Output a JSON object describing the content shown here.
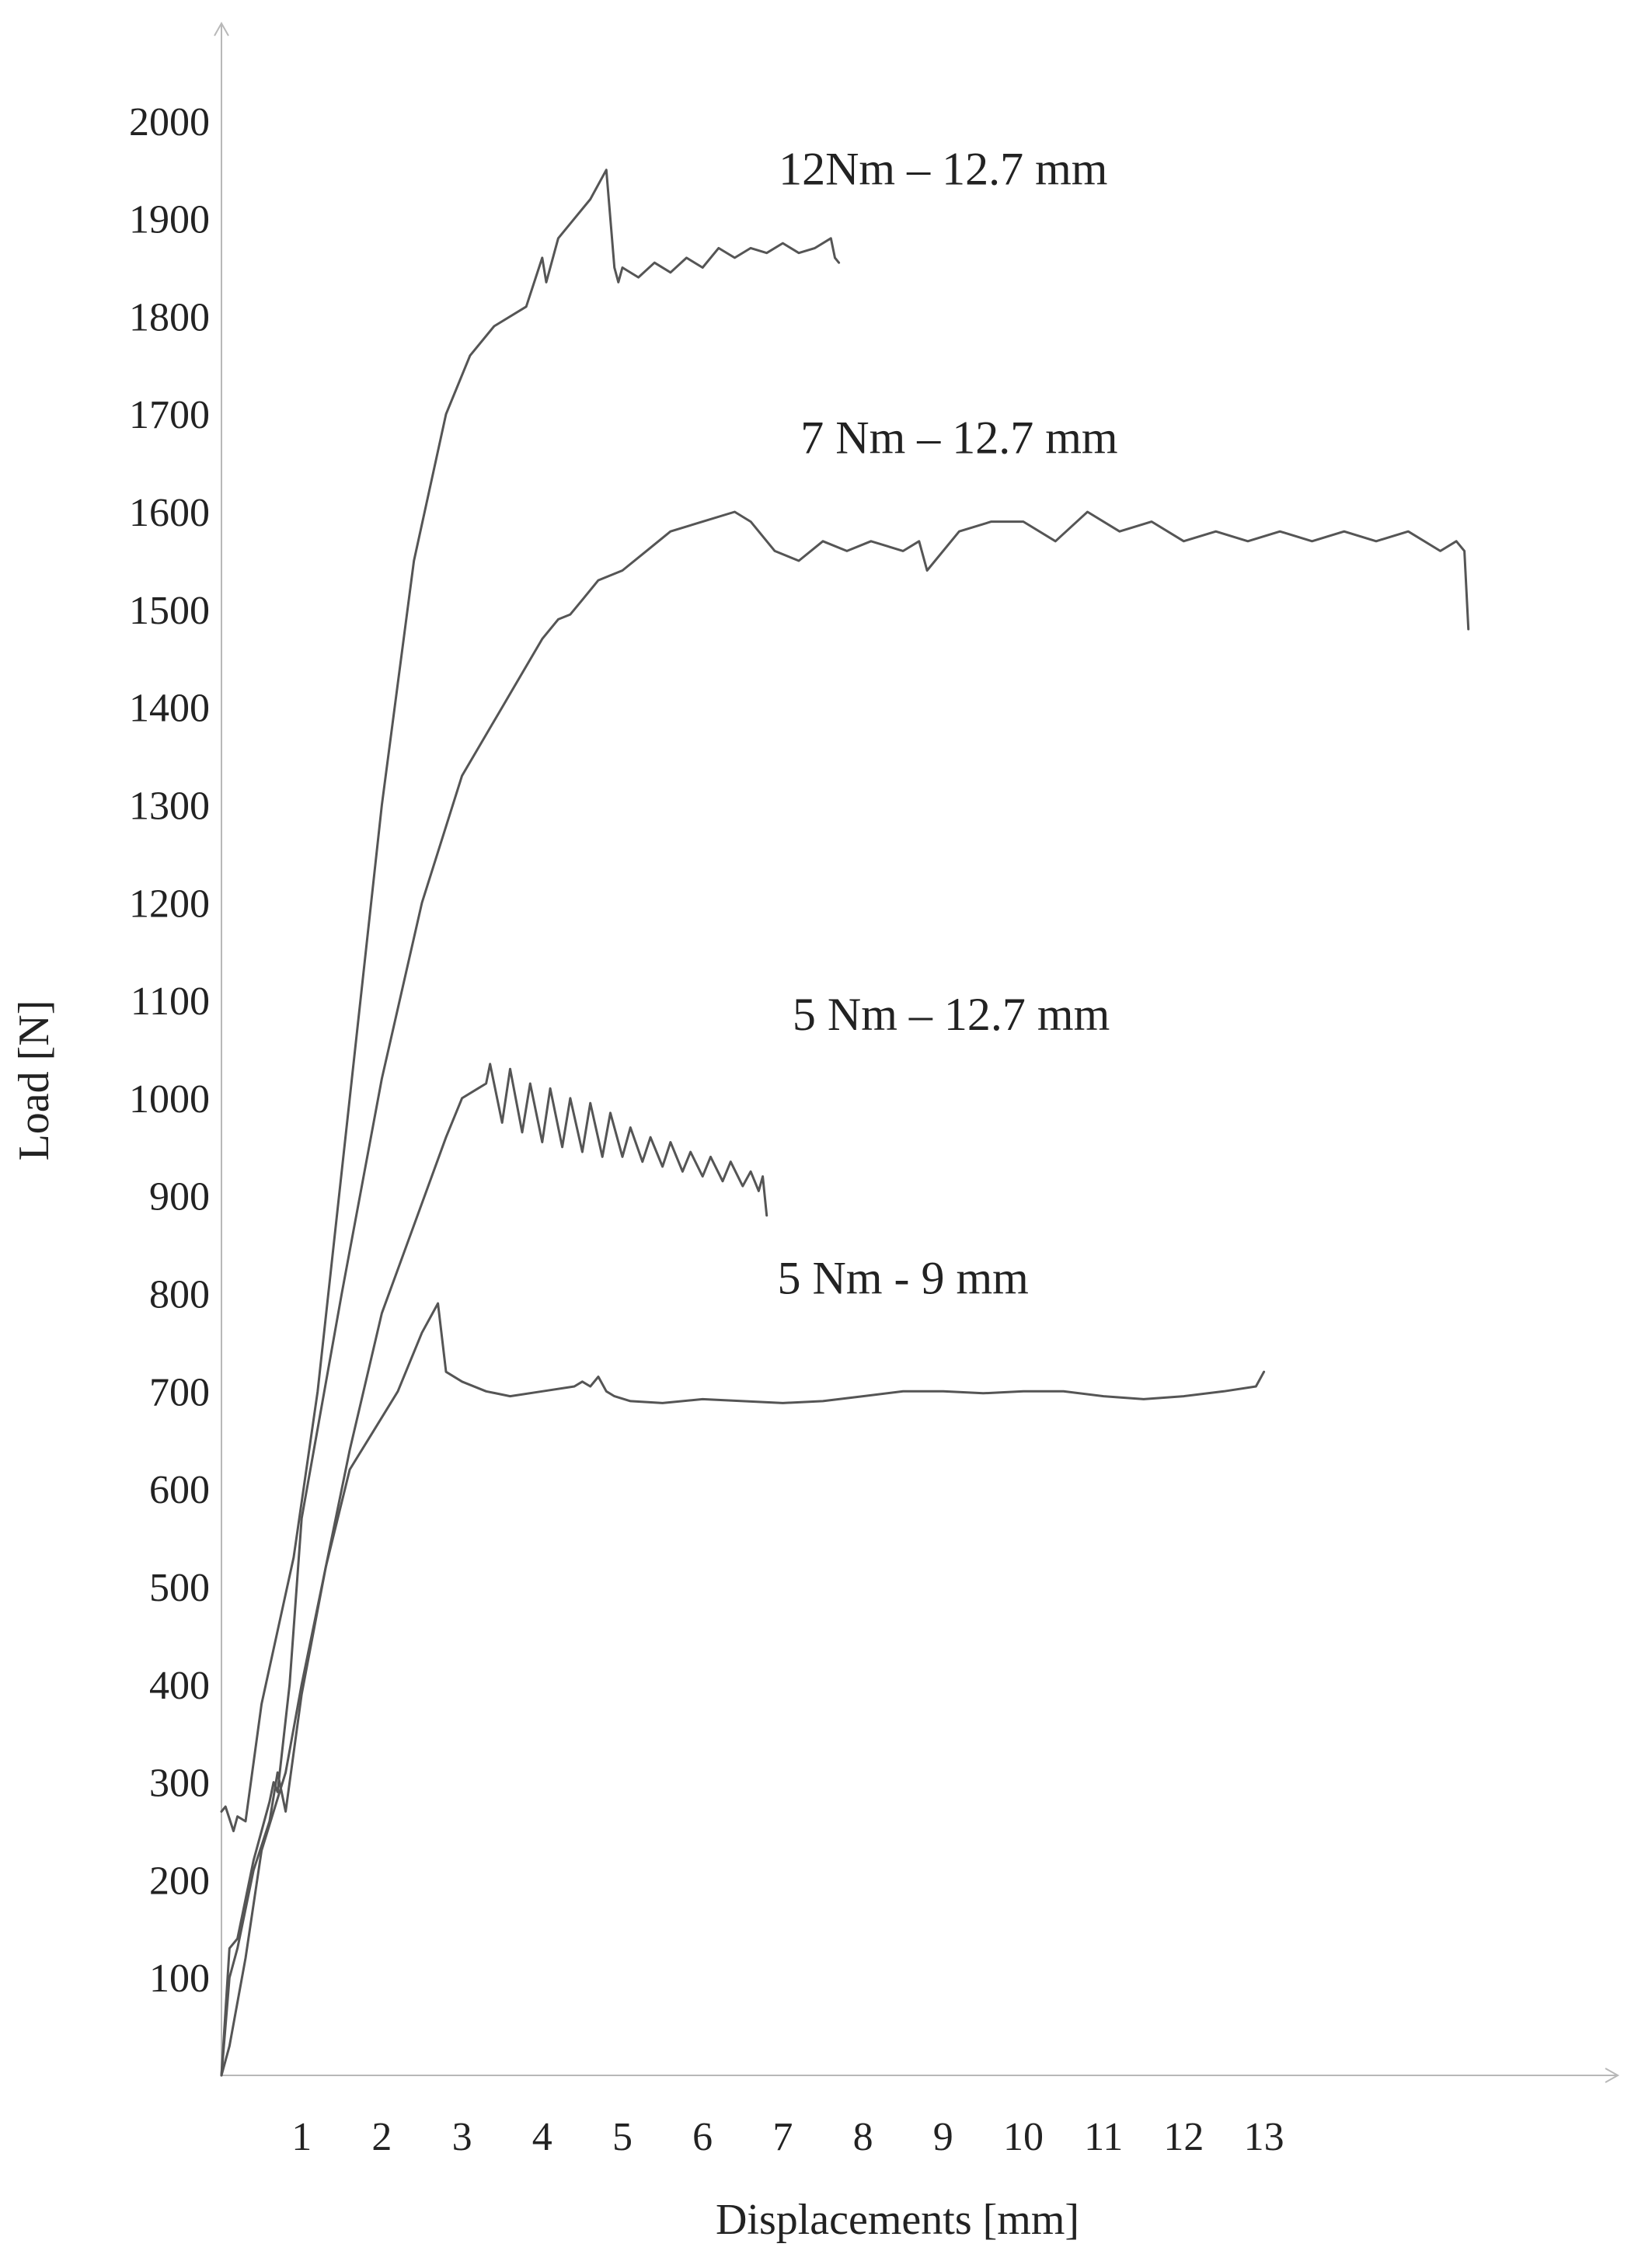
{
  "chart_data": {
    "type": "line",
    "xlabel": "Displacements [mm]",
    "ylabel": "Load [N]",
    "xlim": [
      0,
      17.2
    ],
    "ylim": [
      0,
      2100
    ],
    "x_ticks": [
      1,
      2,
      3,
      4,
      5,
      6,
      7,
      8,
      9,
      10,
      11,
      12,
      13
    ],
    "y_ticks": [
      100,
      200,
      300,
      400,
      500,
      600,
      700,
      800,
      900,
      1000,
      1100,
      1200,
      1300,
      1400,
      1500,
      1600,
      1700,
      1800,
      1900,
      2000
    ],
    "grid": false,
    "legend": "none",
    "line_color": "#555555",
    "series": [
      {
        "name": "12Nm – 12.7 mm",
        "label_at": [
          9.0,
          1935
        ],
        "x": [
          0.0,
          0.05,
          0.15,
          0.2,
          0.3,
          0.5,
          0.9,
          1.2,
          1.6,
          2.0,
          2.4,
          2.8,
          3.1,
          3.4,
          3.8,
          4.0,
          4.05,
          4.2,
          4.4,
          4.6,
          4.8,
          4.9,
          4.95,
          5.0,
          5.2,
          5.4,
          5.6,
          5.8,
          6.0,
          6.2,
          6.4,
          6.6,
          6.8,
          7.0,
          7.2,
          7.4,
          7.6,
          7.65,
          7.7
        ],
        "y": [
          270,
          275,
          250,
          265,
          260,
          380,
          530,
          700,
          1000,
          1300,
          1550,
          1700,
          1760,
          1790,
          1810,
          1860,
          1835,
          1880,
          1900,
          1920,
          1950,
          1850,
          1835,
          1850,
          1840,
          1855,
          1845,
          1860,
          1850,
          1870,
          1860,
          1870,
          1865,
          1875,
          1865,
          1870,
          1880,
          1860,
          1855
        ]
      },
      {
        "name": "7 Nm – 12.7 mm",
        "label_at": [
          9.2,
          1660
        ],
        "x": [
          0.0,
          0.1,
          0.2,
          0.4,
          0.6,
          0.65,
          0.7,
          0.85,
          1.0,
          1.5,
          2.0,
          2.5,
          3.0,
          3.5,
          4.0,
          4.2,
          4.35,
          4.5,
          4.6,
          4.7,
          5.0,
          5.3,
          5.6,
          6.0,
          6.4,
          6.6,
          6.9,
          7.2,
          7.5,
          7.8,
          8.1,
          8.5,
          8.7,
          8.8,
          9.2,
          9.6,
          10.0,
          10.4,
          10.8,
          11.2,
          11.6,
          12.0,
          12.4,
          12.8,
          13.2,
          13.6,
          14.0,
          14.4,
          14.8,
          15.2,
          15.4,
          15.5,
          15.55
        ],
        "y": [
          0,
          130,
          140,
          220,
          280,
          300,
          290,
          400,
          570,
          800,
          1020,
          1200,
          1330,
          1400,
          1470,
          1490,
          1495,
          1510,
          1520,
          1530,
          1540,
          1560,
          1580,
          1590,
          1600,
          1590,
          1560,
          1550,
          1570,
          1560,
          1570,
          1560,
          1570,
          1540,
          1580,
          1590,
          1590,
          1570,
          1600,
          1580,
          1590,
          1570,
          1580,
          1570,
          1580,
          1570,
          1580,
          1570,
          1580,
          1560,
          1570,
          1560,
          1480
        ]
      },
      {
        "name": "5 Nm – 12.7 mm",
        "label_at": [
          9.1,
          1070
        ],
        "x": [
          0.0,
          0.1,
          0.2,
          0.4,
          0.6,
          0.7,
          0.8,
          1.0,
          1.3,
          1.6,
          2.0,
          2.4,
          2.8,
          3.0,
          3.2,
          3.3,
          3.35,
          3.5,
          3.6,
          3.75,
          3.85,
          4.0,
          4.1,
          4.25,
          4.35,
          4.5,
          4.6,
          4.75,
          4.85,
          5.0,
          5.1,
          5.25,
          5.35,
          5.5,
          5.6,
          5.75,
          5.85,
          6.0,
          6.1,
          6.25,
          6.35,
          6.5,
          6.6,
          6.7,
          6.75,
          6.8
        ],
        "y": [
          0,
          100,
          130,
          210,
          260,
          310,
          270,
          390,
          520,
          640,
          780,
          870,
          960,
          1000,
          1010,
          1015,
          1035,
          975,
          1030,
          965,
          1015,
          955,
          1010,
          950,
          1000,
          945,
          995,
          940,
          985,
          940,
          970,
          935,
          960,
          930,
          955,
          925,
          945,
          920,
          940,
          915,
          935,
          910,
          925,
          905,
          920,
          880
        ]
      },
      {
        "name": "5 Nm - 9 mm",
        "label_at": [
          8.5,
          800
        ],
        "x": [
          0.0,
          0.1,
          0.3,
          0.5,
          0.8,
          1.0,
          1.3,
          1.6,
          1.9,
          2.2,
          2.5,
          2.7,
          2.8,
          3.0,
          3.3,
          3.6,
          4.0,
          4.4,
          4.5,
          4.6,
          4.7,
          4.8,
          4.9,
          5.1,
          5.5,
          6.0,
          6.5,
          7.0,
          7.5,
          8.0,
          8.5,
          9.0,
          9.5,
          10.0,
          10.5,
          11.0,
          11.5,
          12.0,
          12.5,
          12.9,
          13.0
        ],
        "y": [
          0,
          30,
          120,
          230,
          310,
          400,
          520,
          620,
          660,
          700,
          760,
          790,
          720,
          710,
          700,
          695,
          700,
          705,
          710,
          705,
          715,
          700,
          695,
          690,
          688,
          692,
          690,
          688,
          690,
          695,
          700,
          700,
          698,
          700,
          700,
          695,
          692,
          695,
          700,
          705,
          720
        ]
      }
    ]
  }
}
